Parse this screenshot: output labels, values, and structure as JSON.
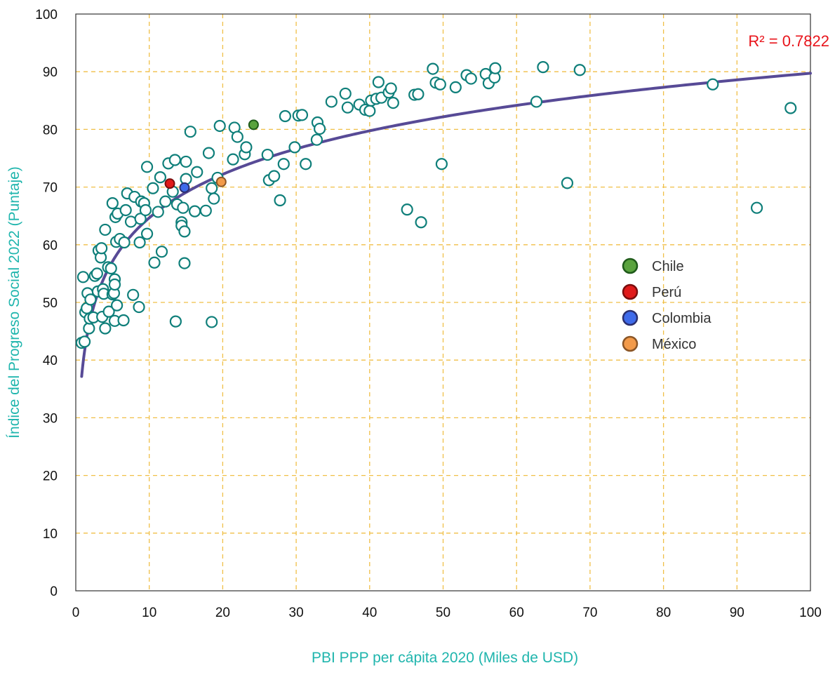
{
  "chart_data": {
    "type": "scatter",
    "title": "",
    "xlabel": "PBI PPP per cápita 2020 (Miles de USD)",
    "ylabel": "Índice del Progreso Social 2022 (Puntaje)",
    "xlim": [
      0,
      100
    ],
    "ylim": [
      0,
      100
    ],
    "x_ticks": [
      0,
      10,
      20,
      30,
      40,
      50,
      60,
      70,
      80,
      90,
      100
    ],
    "y_ticks": [
      0,
      10,
      20,
      30,
      40,
      50,
      60,
      70,
      80,
      90,
      100
    ],
    "grid": true,
    "annotation": "R² = 0.7822",
    "legend_position": "right",
    "colors": {
      "marker_edge": "#0f7f7a",
      "trend": "#574a96",
      "grid": "#f0bf47",
      "axis_title": "#1fb5ad",
      "annotation": "#e8141b"
    },
    "trendline": {
      "type": "logarithmic",
      "a": 10.885,
      "b": 39.6
    },
    "highlights": [
      {
        "name": "Chile",
        "x": 24.2,
        "y": 80.8,
        "color": "#5aa33e",
        "edge": "#1f5a1a"
      },
      {
        "name": "Perú",
        "x": 12.8,
        "y": 70.6,
        "color": "#e01a1a",
        "edge": "#7a0d0d"
      },
      {
        "name": "Colombia",
        "x": 14.8,
        "y": 69.9,
        "color": "#3f6bea",
        "edge": "#2b2f6e"
      },
      {
        "name": "México",
        "x": 19.8,
        "y": 70.9,
        "color": "#f29a4a",
        "edge": "#8a5526"
      }
    ],
    "series": [
      {
        "points": [
          [
            0.8,
            43
          ],
          [
            1.2,
            43.2
          ],
          [
            1.0,
            54.4
          ],
          [
            1.3,
            48.3
          ],
          [
            1.5,
            49
          ],
          [
            1.6,
            51.6
          ],
          [
            1.8,
            45.5
          ],
          [
            1.9,
            47.2
          ],
          [
            2.0,
            50.5
          ],
          [
            2.4,
            47.4
          ],
          [
            2.6,
            54.6
          ],
          [
            2.9,
            55
          ],
          [
            3.0,
            51.9
          ],
          [
            3.1,
            59
          ],
          [
            3.4,
            57.8
          ],
          [
            3.5,
            59.4
          ],
          [
            3.6,
            47.5
          ],
          [
            3.7,
            52.3
          ],
          [
            3.8,
            51.5
          ],
          [
            4.0,
            62.6
          ],
          [
            4.0,
            45.5
          ],
          [
            4.4,
            56.1
          ],
          [
            4.5,
            48.4
          ],
          [
            4.8,
            55.9
          ],
          [
            5.0,
            51.4
          ],
          [
            5.2,
            51.6
          ],
          [
            5.3,
            54
          ],
          [
            5.3,
            53.1
          ],
          [
            5.3,
            46.8
          ],
          [
            5.0,
            67.2
          ],
          [
            5.4,
            64.8
          ],
          [
            5.5,
            60.5
          ],
          [
            5.6,
            49.5
          ],
          [
            5.7,
            65.4
          ],
          [
            6.0,
            61
          ],
          [
            6.5,
            46.9
          ],
          [
            6.6,
            60.4
          ],
          [
            6.8,
            66
          ],
          [
            7.0,
            68.9
          ],
          [
            7.5,
            64
          ],
          [
            7.8,
            51.3
          ],
          [
            8.0,
            68.3
          ],
          [
            8.6,
            49.2
          ],
          [
            8.7,
            60.4
          ],
          [
            8.8,
            64.5
          ],
          [
            8.9,
            67.5
          ],
          [
            9.3,
            67.2
          ],
          [
            9.5,
            66
          ],
          [
            9.7,
            61.9
          ],
          [
            9.7,
            73.5
          ],
          [
            10.5,
            69.8
          ],
          [
            10.7,
            56.9
          ],
          [
            11.2,
            65.7
          ],
          [
            11.5,
            71.7
          ],
          [
            11.7,
            58.8
          ],
          [
            12.2,
            67.5
          ],
          [
            12.6,
            74.1
          ],
          [
            13.2,
            69.2
          ],
          [
            13.5,
            74.7
          ],
          [
            13.6,
            46.7
          ],
          [
            13.8,
            67
          ],
          [
            14.4,
            63.9
          ],
          [
            14.4,
            63.3
          ],
          [
            14.6,
            66.4
          ],
          [
            14.8,
            62.3
          ],
          [
            14.8,
            56.8
          ],
          [
            15.0,
            74.4
          ],
          [
            15.0,
            71.4
          ],
          [
            15.6,
            79.6
          ],
          [
            16.2,
            65.8
          ],
          [
            16.5,
            72.6
          ],
          [
            17.7,
            65.9
          ],
          [
            18.1,
            75.9
          ],
          [
            18.5,
            46.6
          ],
          [
            18.5,
            69.8
          ],
          [
            18.8,
            68
          ],
          [
            19.3,
            71.6
          ],
          [
            19.6,
            80.6
          ],
          [
            21.4,
            74.8
          ],
          [
            21.6,
            80.3
          ],
          [
            22.0,
            78.7
          ],
          [
            23.0,
            75.7
          ],
          [
            23.2,
            76.9
          ],
          [
            26.1,
            75.6
          ],
          [
            26.3,
            71.2
          ],
          [
            27.0,
            71.9
          ],
          [
            27.8,
            67.7
          ],
          [
            28.3,
            74
          ],
          [
            28.5,
            82.3
          ],
          [
            29.8,
            76.9
          ],
          [
            30.3,
            82.4
          ],
          [
            30.8,
            82.5
          ],
          [
            31.3,
            74
          ],
          [
            32.8,
            78.2
          ],
          [
            32.9,
            81.2
          ],
          [
            33.2,
            80.1
          ],
          [
            34.8,
            84.8
          ],
          [
            36.7,
            86.2
          ],
          [
            37.0,
            83.8
          ],
          [
            38.6,
            84.3
          ],
          [
            39.4,
            83.4
          ],
          [
            40.0,
            83.2
          ],
          [
            40.2,
            85
          ],
          [
            40.9,
            85.3
          ],
          [
            41.2,
            88.2
          ],
          [
            41.6,
            85.5
          ],
          [
            42.6,
            86.4
          ],
          [
            42.9,
            87.1
          ],
          [
            43.2,
            84.6
          ],
          [
            45.1,
            66.1
          ],
          [
            46.1,
            86
          ],
          [
            46.6,
            86.1
          ],
          [
            47.0,
            63.9
          ],
          [
            48.6,
            90.5
          ],
          [
            49.0,
            88.1
          ],
          [
            49.6,
            87.8
          ],
          [
            49.8,
            74
          ],
          [
            51.7,
            87.3
          ],
          [
            53.2,
            89.4
          ],
          [
            53.8,
            88.8
          ],
          [
            55.8,
            89.6
          ],
          [
            56.2,
            88
          ],
          [
            57.0,
            89
          ],
          [
            57.1,
            90.6
          ],
          [
            62.7,
            84.8
          ],
          [
            63.6,
            90.8
          ],
          [
            66.9,
            70.7
          ],
          [
            68.6,
            90.3
          ],
          [
            86.7,
            87.8
          ],
          [
            92.7,
            66.4
          ],
          [
            97.3,
            83.7
          ]
        ]
      }
    ]
  }
}
